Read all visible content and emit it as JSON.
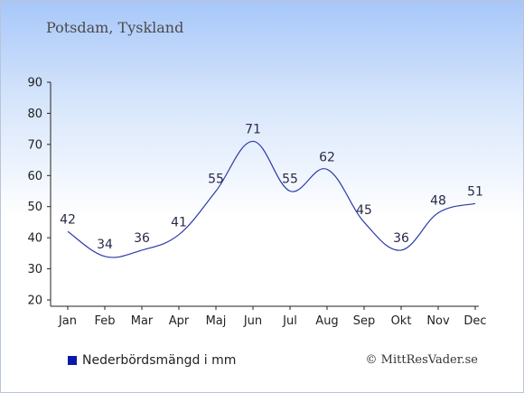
{
  "place_title": "Potsdam, Tyskland",
  "credit": "© MittResVader.se",
  "chart_data": {
    "type": "line",
    "categories": [
      "Jan",
      "Feb",
      "Mar",
      "Apr",
      "Maj",
      "Jun",
      "Jul",
      "Aug",
      "Sep",
      "Okt",
      "Nov",
      "Dec"
    ],
    "series": [
      {
        "name": "Nederbördsmängd i mm",
        "values": [
          42,
          34,
          36,
          41,
          55,
          71,
          55,
          62,
          45,
          36,
          48,
          51
        ]
      }
    ],
    "ylim": [
      20,
      90
    ],
    "yticks": [
      20,
      30,
      40,
      50,
      60,
      70,
      80,
      90
    ],
    "grid": false,
    "legend_position": "bottom-left",
    "line_color": "#2b3ba8",
    "legend_color": "#0a1aa8"
  }
}
